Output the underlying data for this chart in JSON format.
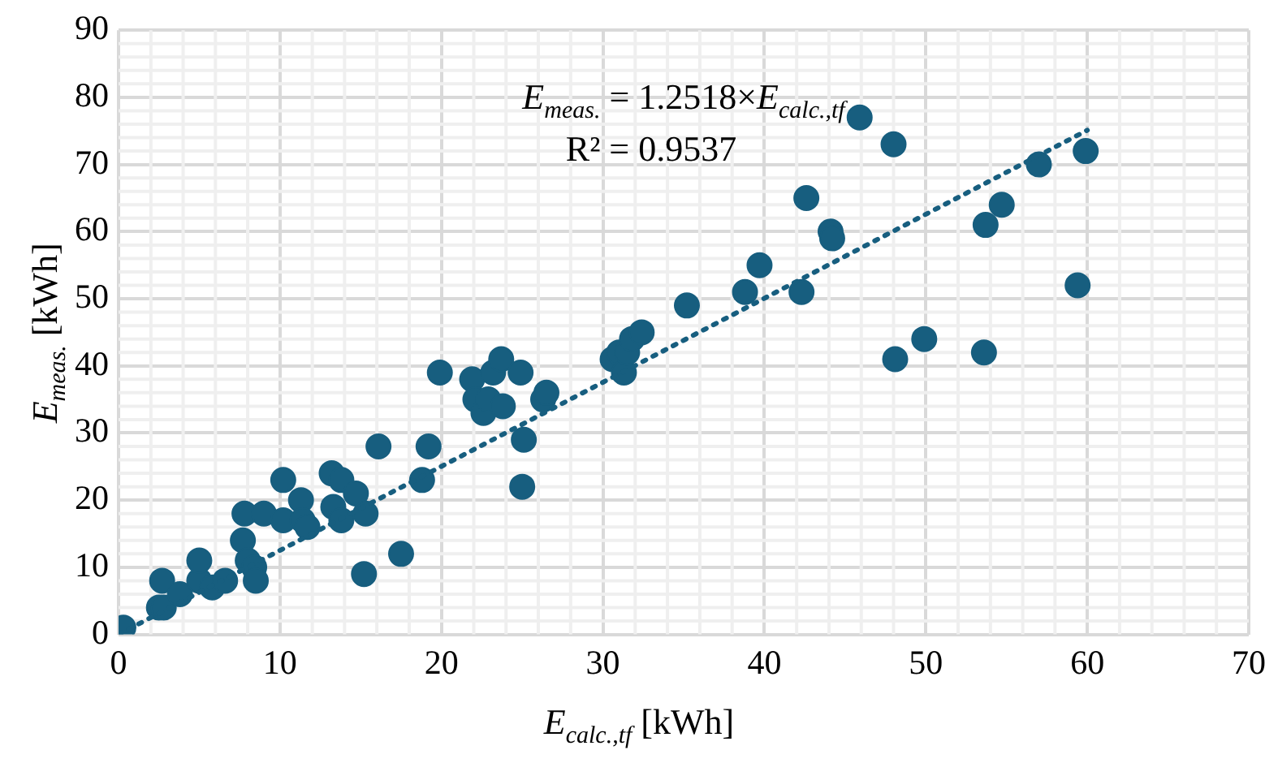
{
  "chart_data": {
    "type": "scatter",
    "xlabel": "E$_{calc.,tf}$ [kWh]",
    "ylabel": "E$_{meas.}$ [kWh]",
    "annotations": [
      "E$_{meas.}$ = 1.2518×E$_{calc.,tf}$",
      "R² = 0.9537"
    ],
    "xlim": [
      0,
      70
    ],
    "xticks": [
      0,
      10,
      20,
      30,
      40,
      50,
      60,
      70
    ],
    "ylim": [
      0,
      90
    ],
    "yticks": [
      0,
      10,
      20,
      30,
      40,
      50,
      60,
      70,
      80,
      90
    ],
    "grid": true,
    "legend": false,
    "series": [
      {
        "type": "scatter",
        "color": "#175e7f",
        "marker": "circle",
        "x": [
          0.3,
          2.5,
          2.8,
          2.7,
          3.8,
          5,
          5,
          5.8,
          6.6,
          7.7,
          7.8,
          8,
          8.4,
          8.5,
          9,
          10.2,
          10.2,
          11.3,
          11.4,
          11.7,
          13.2,
          13.3,
          13.8,
          13.8,
          14.7,
          15.2,
          15.3,
          16.1,
          17.5,
          18.8,
          19.2,
          19.9,
          21.9,
          22.1,
          22.6,
          22.9,
          23.2,
          23.7,
          23.8,
          24.9,
          25.1,
          25,
          26.3,
          26.5,
          30.6,
          31,
          31.3,
          31.5,
          31.8,
          32.4,
          35.2,
          38.8,
          39.7,
          42.3,
          42.6,
          44.1,
          44.2,
          45.9,
          48,
          48.1,
          49.9,
          53.7,
          53.6,
          54.7,
          57,
          59.4,
          59.9
        ],
        "values": [
          1,
          4,
          4,
          8,
          6,
          8,
          11,
          7,
          8,
          14,
          18,
          11,
          10,
          8,
          18,
          23,
          17,
          20,
          17,
          16,
          24,
          19,
          17,
          23,
          21,
          9,
          18,
          28,
          12,
          23,
          28,
          39,
          38,
          35,
          33,
          35,
          39,
          41,
          34,
          39,
          29,
          22,
          35,
          36,
          41,
          42,
          39,
          42,
          44,
          45,
          49,
          51,
          55,
          51,
          65,
          60,
          59,
          77,
          73,
          41,
          44,
          61,
          42,
          64,
          70,
          52,
          72
        ]
      },
      {
        "type": "line",
        "color": "#175e7f",
        "marker": "none",
        "line_style": "dotted",
        "x": [
          0,
          60
        ],
        "values": [
          0,
          75.1
        ]
      }
    ]
  }
}
